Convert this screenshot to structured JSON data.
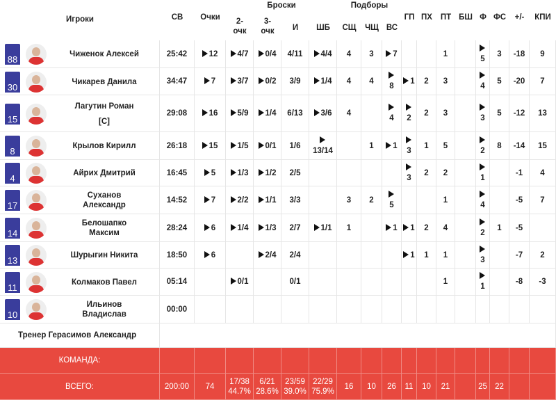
{
  "header": {
    "players_label": "Игроки",
    "groups": [
      {
        "label": "Броски"
      },
      {
        "label": "Подборы"
      }
    ],
    "columns": [
      "СВ",
      "Очки",
      "2- очк",
      "3- очк",
      "И",
      "ШБ",
      "СЩ",
      "ЧЩ",
      "ВС",
      "ГП",
      "ПХ",
      "ПТ",
      "БШ",
      "Ф",
      "ФС",
      "+/-",
      "КПИ"
    ]
  },
  "players": [
    {
      "number": "88",
      "name": "Чиженок Алексей",
      "stats": [
        "25:42",
        "12",
        "4/7",
        "0/4",
        "4/11",
        "4/4",
        "4",
        "3",
        "7",
        null,
        null,
        "1",
        null,
        "5",
        "3",
        "-18",
        "9"
      ]
    },
    {
      "number": "30",
      "name": "Чикарев Данила",
      "stats": [
        "34:47",
        "7",
        "3/7",
        "0/2",
        "3/9",
        "1/4",
        "4",
        "4",
        "8",
        "1",
        "2",
        "3",
        null,
        "4",
        "5",
        "-20",
        "7"
      ]
    },
    {
      "number": "15",
      "name": "Лагутин Роман",
      "captain": "[C]",
      "stats": [
        "29:08",
        "16",
        "5/9",
        "1/4",
        "6/13",
        "3/6",
        "4",
        null,
        "4",
        "2",
        "2",
        "3",
        null,
        "3",
        "5",
        "-12",
        "13"
      ]
    },
    {
      "number": "8",
      "name": "Крылов Кирилл",
      "stats": [
        "26:18",
        "15",
        "1/5",
        "0/1",
        "1/6",
        "13/14",
        null,
        "1",
        "1",
        "3",
        "1",
        "5",
        null,
        "2",
        "8",
        "-14",
        "15"
      ]
    },
    {
      "number": "4",
      "name": "Айрих Дмитрий",
      "stats": [
        "16:45",
        "5",
        "1/3",
        "1/2",
        "2/5",
        null,
        null,
        null,
        null,
        "3",
        "2",
        "2",
        null,
        "1",
        null,
        "-1",
        "4"
      ]
    },
    {
      "number": "17",
      "name": "Суханов Александр",
      "stats": [
        "14:52",
        "7",
        "2/2",
        "1/1",
        "3/3",
        null,
        "3",
        "2",
        "5",
        null,
        null,
        "1",
        null,
        "4",
        null,
        "-5",
        "7"
      ]
    },
    {
      "number": "14",
      "name": "Белошапко Максим",
      "stats": [
        "28:24",
        "6",
        "1/4",
        "1/3",
        "2/7",
        "1/1",
        "1",
        null,
        "1",
        "1",
        "2",
        "4",
        null,
        "2",
        "1",
        "-5",
        null
      ]
    },
    {
      "number": "13",
      "name": "Шурыгин Никита",
      "stats": [
        "18:50",
        "6",
        null,
        "2/4",
        "2/4",
        null,
        null,
        null,
        null,
        "1",
        "1",
        "1",
        null,
        "3",
        null,
        "-7",
        "2"
      ]
    },
    {
      "number": "11",
      "name": "Колмаков Павел",
      "stats": [
        "05:14",
        null,
        "0/1",
        null,
        "0/1",
        null,
        null,
        null,
        null,
        null,
        null,
        "1",
        null,
        "1",
        null,
        "-8",
        "-3"
      ]
    },
    {
      "number": "10",
      "name": "Ильинов Владислав",
      "stats": [
        "00:00",
        null,
        null,
        null,
        null,
        null,
        null,
        null,
        null,
        null,
        null,
        null,
        null,
        null,
        null,
        null,
        null
      ]
    }
  ],
  "coach": "Тренер Герасимов Александр",
  "team_row": {
    "label": "КОМАНДА:"
  },
  "total_row": {
    "label": "ВСЕГО:",
    "stats": [
      "200:00",
      "74",
      [
        "17/38",
        "44.7%"
      ],
      [
        "6/21",
        "28.6%"
      ],
      [
        "23/59",
        "39.0%"
      ],
      [
        "22/29",
        "75.9%"
      ],
      "16",
      "10",
      "26",
      "11",
      "10",
      "21",
      null,
      "25",
      "22",
      null,
      null
    ]
  }
}
